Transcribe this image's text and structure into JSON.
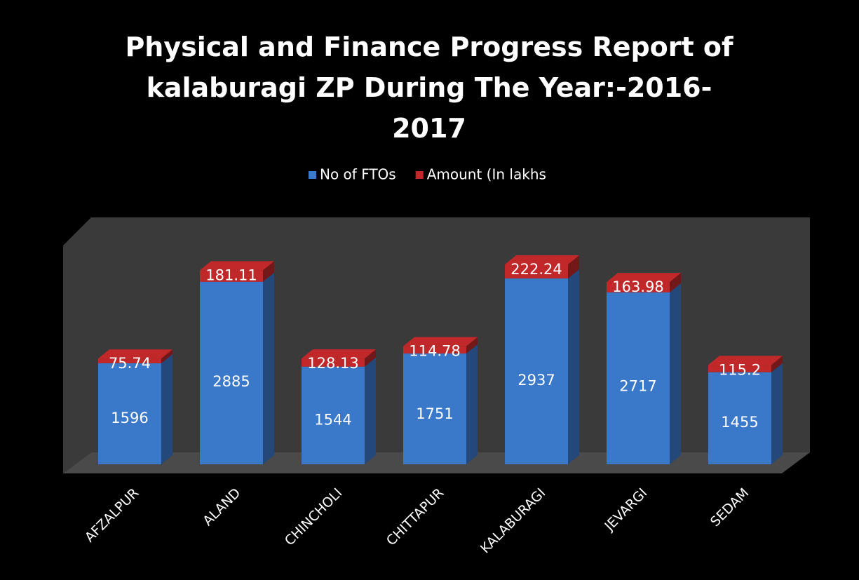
{
  "chart_data": {
    "type": "bar",
    "stacked": true,
    "title": "Physical and Finance Progress Report of kalaburagi ZP During The Year:-2016-2017",
    "categories": [
      "AFZALPUR",
      "ALAND",
      "CHINCHOLI",
      "CHITTAPUR",
      "KALABURAGI",
      "JEVARGI",
      "SEDAM"
    ],
    "series": [
      {
        "name": "No of FTOs",
        "color": "#3a78c9",
        "values": [
          1596,
          2885,
          1544,
          1751,
          2937,
          2717,
          1455
        ]
      },
      {
        "name": "Amount (In lakhs",
        "color": "#c0282a",
        "values": [
          75.74,
          181.11,
          128.13,
          114.78,
          222.24,
          163.98,
          115.2
        ]
      }
    ],
    "legend": "top"
  }
}
